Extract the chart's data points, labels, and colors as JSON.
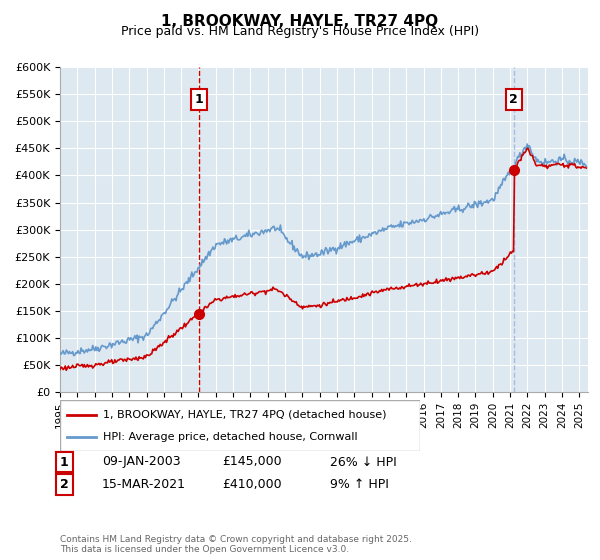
{
  "title": "1, BROOKWAY, HAYLE, TR27 4PQ",
  "subtitle": "Price paid vs. HM Land Registry's House Price Index (HPI)",
  "ylabel_ticks": [
    "£0",
    "£50K",
    "£100K",
    "£150K",
    "£200K",
    "£250K",
    "£300K",
    "£350K",
    "£400K",
    "£450K",
    "£500K",
    "£550K",
    "£600K"
  ],
  "ytick_values": [
    0,
    50000,
    100000,
    150000,
    200000,
    250000,
    300000,
    350000,
    400000,
    450000,
    500000,
    550000,
    600000
  ],
  "sale1": {
    "date_num": 2003.03,
    "price": 145000,
    "label": "1",
    "date_str": "09-JAN-2003",
    "price_str": "£145,000",
    "pct": "26% ↓ HPI"
  },
  "sale2": {
    "date_num": 2021.21,
    "price": 410000,
    "label": "2",
    "date_str": "15-MAR-2021",
    "price_str": "£410,000",
    "pct": "9% ↑ HPI"
  },
  "vline1_x": 2003.03,
  "vline2_x": 2021.21,
  "vline1_color": "#cc0000",
  "vline2_color": "#aabbdd",
  "line_color_red": "#cc0000",
  "line_color_blue": "#6699cc",
  "legend_label_red": "1, BROOKWAY, HAYLE, TR27 4PQ (detached house)",
  "legend_label_blue": "HPI: Average price, detached house, Cornwall",
  "footnote": "Contains HM Land Registry data © Crown copyright and database right 2025.\nThis data is licensed under the Open Government Licence v3.0.",
  "background_color": "#ffffff",
  "plot_bg_color": "#dde8f0",
  "grid_color": "#ffffff",
  "xmin": 1995,
  "xmax": 2025.5,
  "ymin": 0,
  "ymax": 600000
}
